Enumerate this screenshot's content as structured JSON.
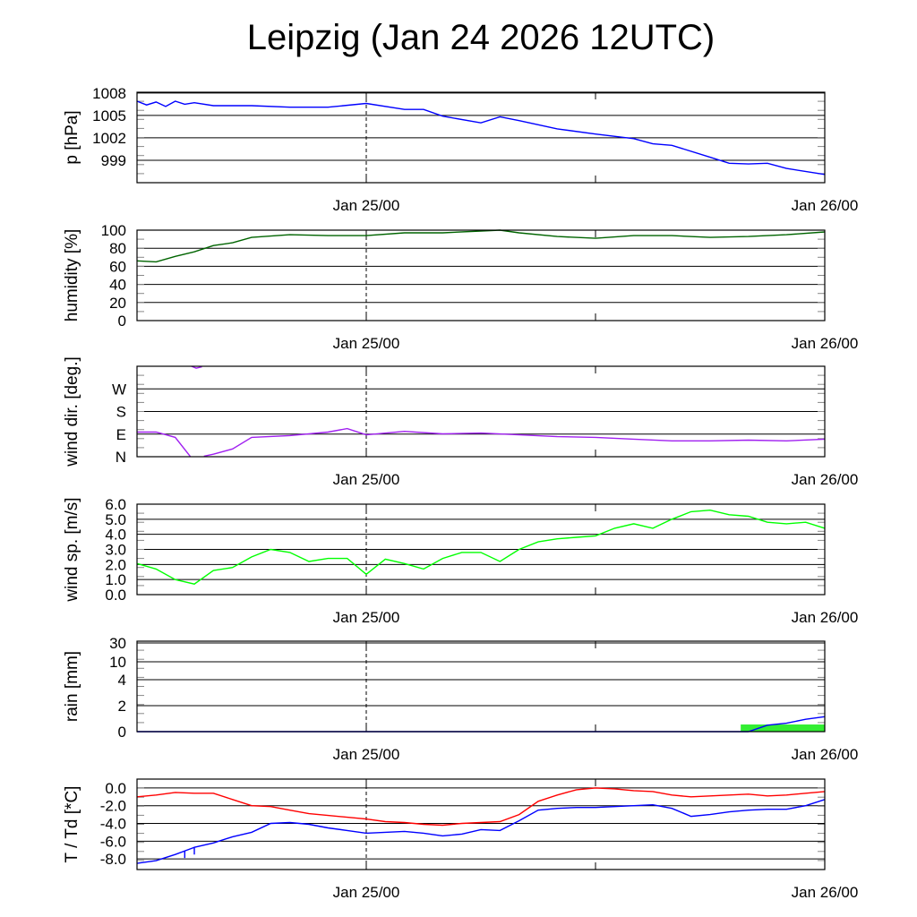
{
  "title": "Leipzig (Jan 24 2026 12UTC)",
  "chart_data": [
    {
      "type": "line",
      "ylabel": "p [hPa]",
      "ylim": [
        996,
        1008.1
      ],
      "yticks": [
        {
          "v": 1008,
          "label": "1008"
        },
        {
          "v": 1005,
          "label": "1005"
        },
        {
          "v": 1002,
          "label": "1002"
        },
        {
          "v": 999,
          "label": "999"
        }
      ],
      "xlabels": [
        "Jan 25/00",
        "Jan 26/00"
      ],
      "series": [
        {
          "name": "pressure",
          "color": "#0000ff",
          "x": [
            0,
            0.5,
            1,
            1.5,
            2,
            2.5,
            3,
            4,
            6,
            8,
            10,
            12,
            14,
            15,
            16,
            18,
            19,
            20,
            22,
            24,
            26,
            27,
            28,
            30,
            31,
            32,
            33,
            34,
            36
          ],
          "y": [
            1006.9,
            1006.4,
            1006.8,
            1006.2,
            1006.9,
            1006.5,
            1006.7,
            1006.3,
            1006.3,
            1006.1,
            1006.1,
            1006.6,
            1005.8,
            1005.8,
            1004.9,
            1004.0,
            1004.8,
            1004.3,
            1003.2,
            1002.5,
            1001.9,
            1001.2,
            1001.0,
            999.4,
            998.6,
            998.5,
            998.6,
            997.9,
            997.1
          ]
        }
      ]
    },
    {
      "type": "line",
      "ylabel": "humidity [%]",
      "ylim": [
        0,
        100
      ],
      "yticks": [
        {
          "v": 100,
          "label": "100"
        },
        {
          "v": 80,
          "label": "80"
        },
        {
          "v": 60,
          "label": "60"
        },
        {
          "v": 40,
          "label": "40"
        },
        {
          "v": 20,
          "label": "20"
        },
        {
          "v": 0,
          "label": "0"
        }
      ],
      "xlabels": [
        "Jan 25/00",
        "Jan 26/00"
      ],
      "series": [
        {
          "name": "humidity",
          "color": "#006400",
          "x": [
            0,
            1,
            2,
            3,
            4,
            5,
            6,
            8,
            10,
            12,
            14,
            16,
            18,
            19,
            20,
            22,
            24,
            26,
            28,
            30,
            32,
            34,
            36
          ],
          "y": [
            66,
            65,
            71,
            76,
            83,
            86,
            92,
            95,
            94,
            94,
            97,
            97,
            99,
            100,
            97,
            93,
            91,
            94,
            94,
            92,
            93,
            95,
            98
          ]
        }
      ]
    },
    {
      "type": "line",
      "ylabel": "wind dir. [deg.]",
      "ylim": [
        0,
        360
      ],
      "yticks": [
        {
          "v": 270,
          "label": "W"
        },
        {
          "v": 180,
          "label": "S"
        },
        {
          "v": 90,
          "label": "E"
        },
        {
          "v": 0,
          "label": "N"
        }
      ],
      "xlabels": [
        "Jan 25/00",
        "Jan 26/00"
      ],
      "series": [
        {
          "name": "wind direction",
          "color": "#a020f0",
          "x": [
            0,
            1,
            2,
            2.8,
            null,
            2.85,
            3.1,
            3.4,
            null,
            3.5,
            4,
            5,
            6,
            8,
            10,
            11,
            12,
            14,
            16,
            18,
            20,
            22,
            24,
            26,
            28,
            30,
            32,
            34,
            36
          ],
          "y": [
            98,
            98,
            77,
            0,
            null,
            360,
            352,
            358,
            null,
            2,
            10,
            31,
            77,
            84,
            98,
            112,
            87,
            101,
            91,
            94,
            87,
            80,
            77,
            70,
            63,
            63,
            66,
            63,
            70
          ]
        }
      ]
    },
    {
      "type": "line",
      "ylabel": "wind sp. [m/s]",
      "ylim": [
        0,
        6
      ],
      "yticks": [
        {
          "v": 6,
          "label": "6.0"
        },
        {
          "v": 5,
          "label": "5.0"
        },
        {
          "v": 4,
          "label": "4.0"
        },
        {
          "v": 3,
          "label": "3.0"
        },
        {
          "v": 2,
          "label": "2.0"
        },
        {
          "v": 1,
          "label": "1.0"
        },
        {
          "v": 0,
          "label": "0.0"
        }
      ],
      "xlabels": [
        "Jan 25/00",
        "Jan 26/00"
      ],
      "series": [
        {
          "name": "wind speed",
          "color": "#00ff00",
          "x": [
            0,
            1,
            2,
            3,
            4,
            5,
            6,
            7,
            8,
            9,
            10,
            11,
            12,
            13,
            14,
            15,
            16,
            17,
            18,
            19,
            20,
            21,
            22,
            23,
            24,
            25,
            26,
            27,
            28,
            29,
            30,
            31,
            32,
            33,
            34,
            35,
            36
          ],
          "y": [
            2.06,
            1.7,
            1.0,
            0.7,
            1.6,
            1.8,
            2.5,
            3.0,
            2.8,
            2.2,
            2.4,
            2.4,
            1.35,
            2.35,
            2.06,
            1.7,
            2.4,
            2.8,
            2.8,
            2.2,
            3.0,
            3.5,
            3.7,
            3.8,
            3.9,
            4.4,
            4.7,
            4.4,
            5.0,
            5.5,
            5.6,
            5.3,
            5.2,
            4.8,
            4.7,
            4.8,
            4.4
          ]
        }
      ]
    },
    {
      "type": "bar+line",
      "ylabel": "rain [mm]",
      "ylim": [
        0,
        31
      ],
      "yticks": [
        {
          "v": 30,
          "label": "30"
        },
        {
          "v": 10,
          "label": "10"
        },
        {
          "v": 4,
          "label": "4"
        },
        {
          "v": 2,
          "label": "2"
        },
        {
          "v": 0,
          "label": "0"
        }
      ],
      "xlabels": [
        "Jan 25/00",
        "Jan 26/00"
      ],
      "bars": [
        {
          "name": "hourly rain",
          "color": "#33ee33",
          "x0": 31.6,
          "x1": 36,
          "value": 0.55
        }
      ],
      "series": [
        {
          "name": "accumulated rain",
          "color": "#0000ff",
          "x": [
            0,
            32,
            33,
            34,
            35,
            36
          ],
          "y": [
            0,
            0,
            0.5,
            0.65,
            0.95,
            1.15
          ]
        }
      ]
    },
    {
      "type": "line",
      "ylabel": "T / Td [*C]",
      "ylim": [
        -9.2,
        1.0
      ],
      "yticks": [
        {
          "v": 0,
          "label": "0.0"
        },
        {
          "v": -2,
          "label": "-2.0"
        },
        {
          "v": -4,
          "label": "-4.0"
        },
        {
          "v": -6,
          "label": "-6.0"
        },
        {
          "v": -8,
          "label": "-8.0"
        }
      ],
      "xlabels": [
        "Jan 25/00",
        "Jan 26/00"
      ],
      "series": [
        {
          "name": "temperature",
          "color": "#ff0000",
          "x": [
            0,
            1,
            2,
            3,
            4,
            5,
            6,
            7,
            8,
            9,
            10,
            11,
            12,
            13,
            14,
            15,
            16,
            17,
            18,
            19,
            20,
            21,
            22,
            23,
            24,
            25,
            26,
            27,
            28,
            29,
            30,
            31,
            32,
            33,
            34,
            35,
            36
          ],
          "y": [
            -1.0,
            -0.8,
            -0.5,
            -0.6,
            -0.6,
            -1.3,
            -2.0,
            -2.1,
            -2.5,
            -2.9,
            -3.1,
            -3.3,
            -3.5,
            -3.8,
            -3.9,
            -4.1,
            -4.2,
            -4.0,
            -3.9,
            -3.8,
            -3.0,
            -1.5,
            -0.8,
            -0.2,
            0.0,
            -0.1,
            -0.3,
            -0.4,
            -0.8,
            -1.0,
            -0.9,
            -0.8,
            -0.7,
            -0.9,
            -0.8,
            -0.6,
            -0.4
          ]
        },
        {
          "name": "dewpoint",
          "color": "#0000ff",
          "x": [
            0,
            1,
            2,
            2.5,
            2.5,
            2.5,
            3,
            3,
            3,
            4,
            5,
            6,
            7,
            8,
            9,
            10,
            11,
            12,
            13,
            14,
            15,
            16,
            17,
            18,
            19,
            20,
            21,
            22,
            23,
            24,
            25,
            26,
            27,
            28,
            29,
            30,
            31,
            32,
            33,
            34,
            35,
            36
          ],
          "y": [
            -8.5,
            -8.2,
            -7.5,
            -7.1,
            -7.9,
            -7.1,
            -6.7,
            -7.5,
            -6.7,
            -6.2,
            -5.5,
            -5.0,
            -4.0,
            -3.9,
            -4.1,
            -4.5,
            -4.8,
            -5.1,
            -5.0,
            -4.9,
            -5.1,
            -5.4,
            -5.2,
            -4.7,
            -4.8,
            -3.7,
            -2.5,
            -2.3,
            -2.2,
            -2.2,
            -2.1,
            -2.0,
            -1.9,
            -2.3,
            -3.2,
            -3.0,
            -2.7,
            -2.5,
            -2.4,
            -2.4,
            -2.0,
            -1.3
          ]
        }
      ]
    }
  ]
}
